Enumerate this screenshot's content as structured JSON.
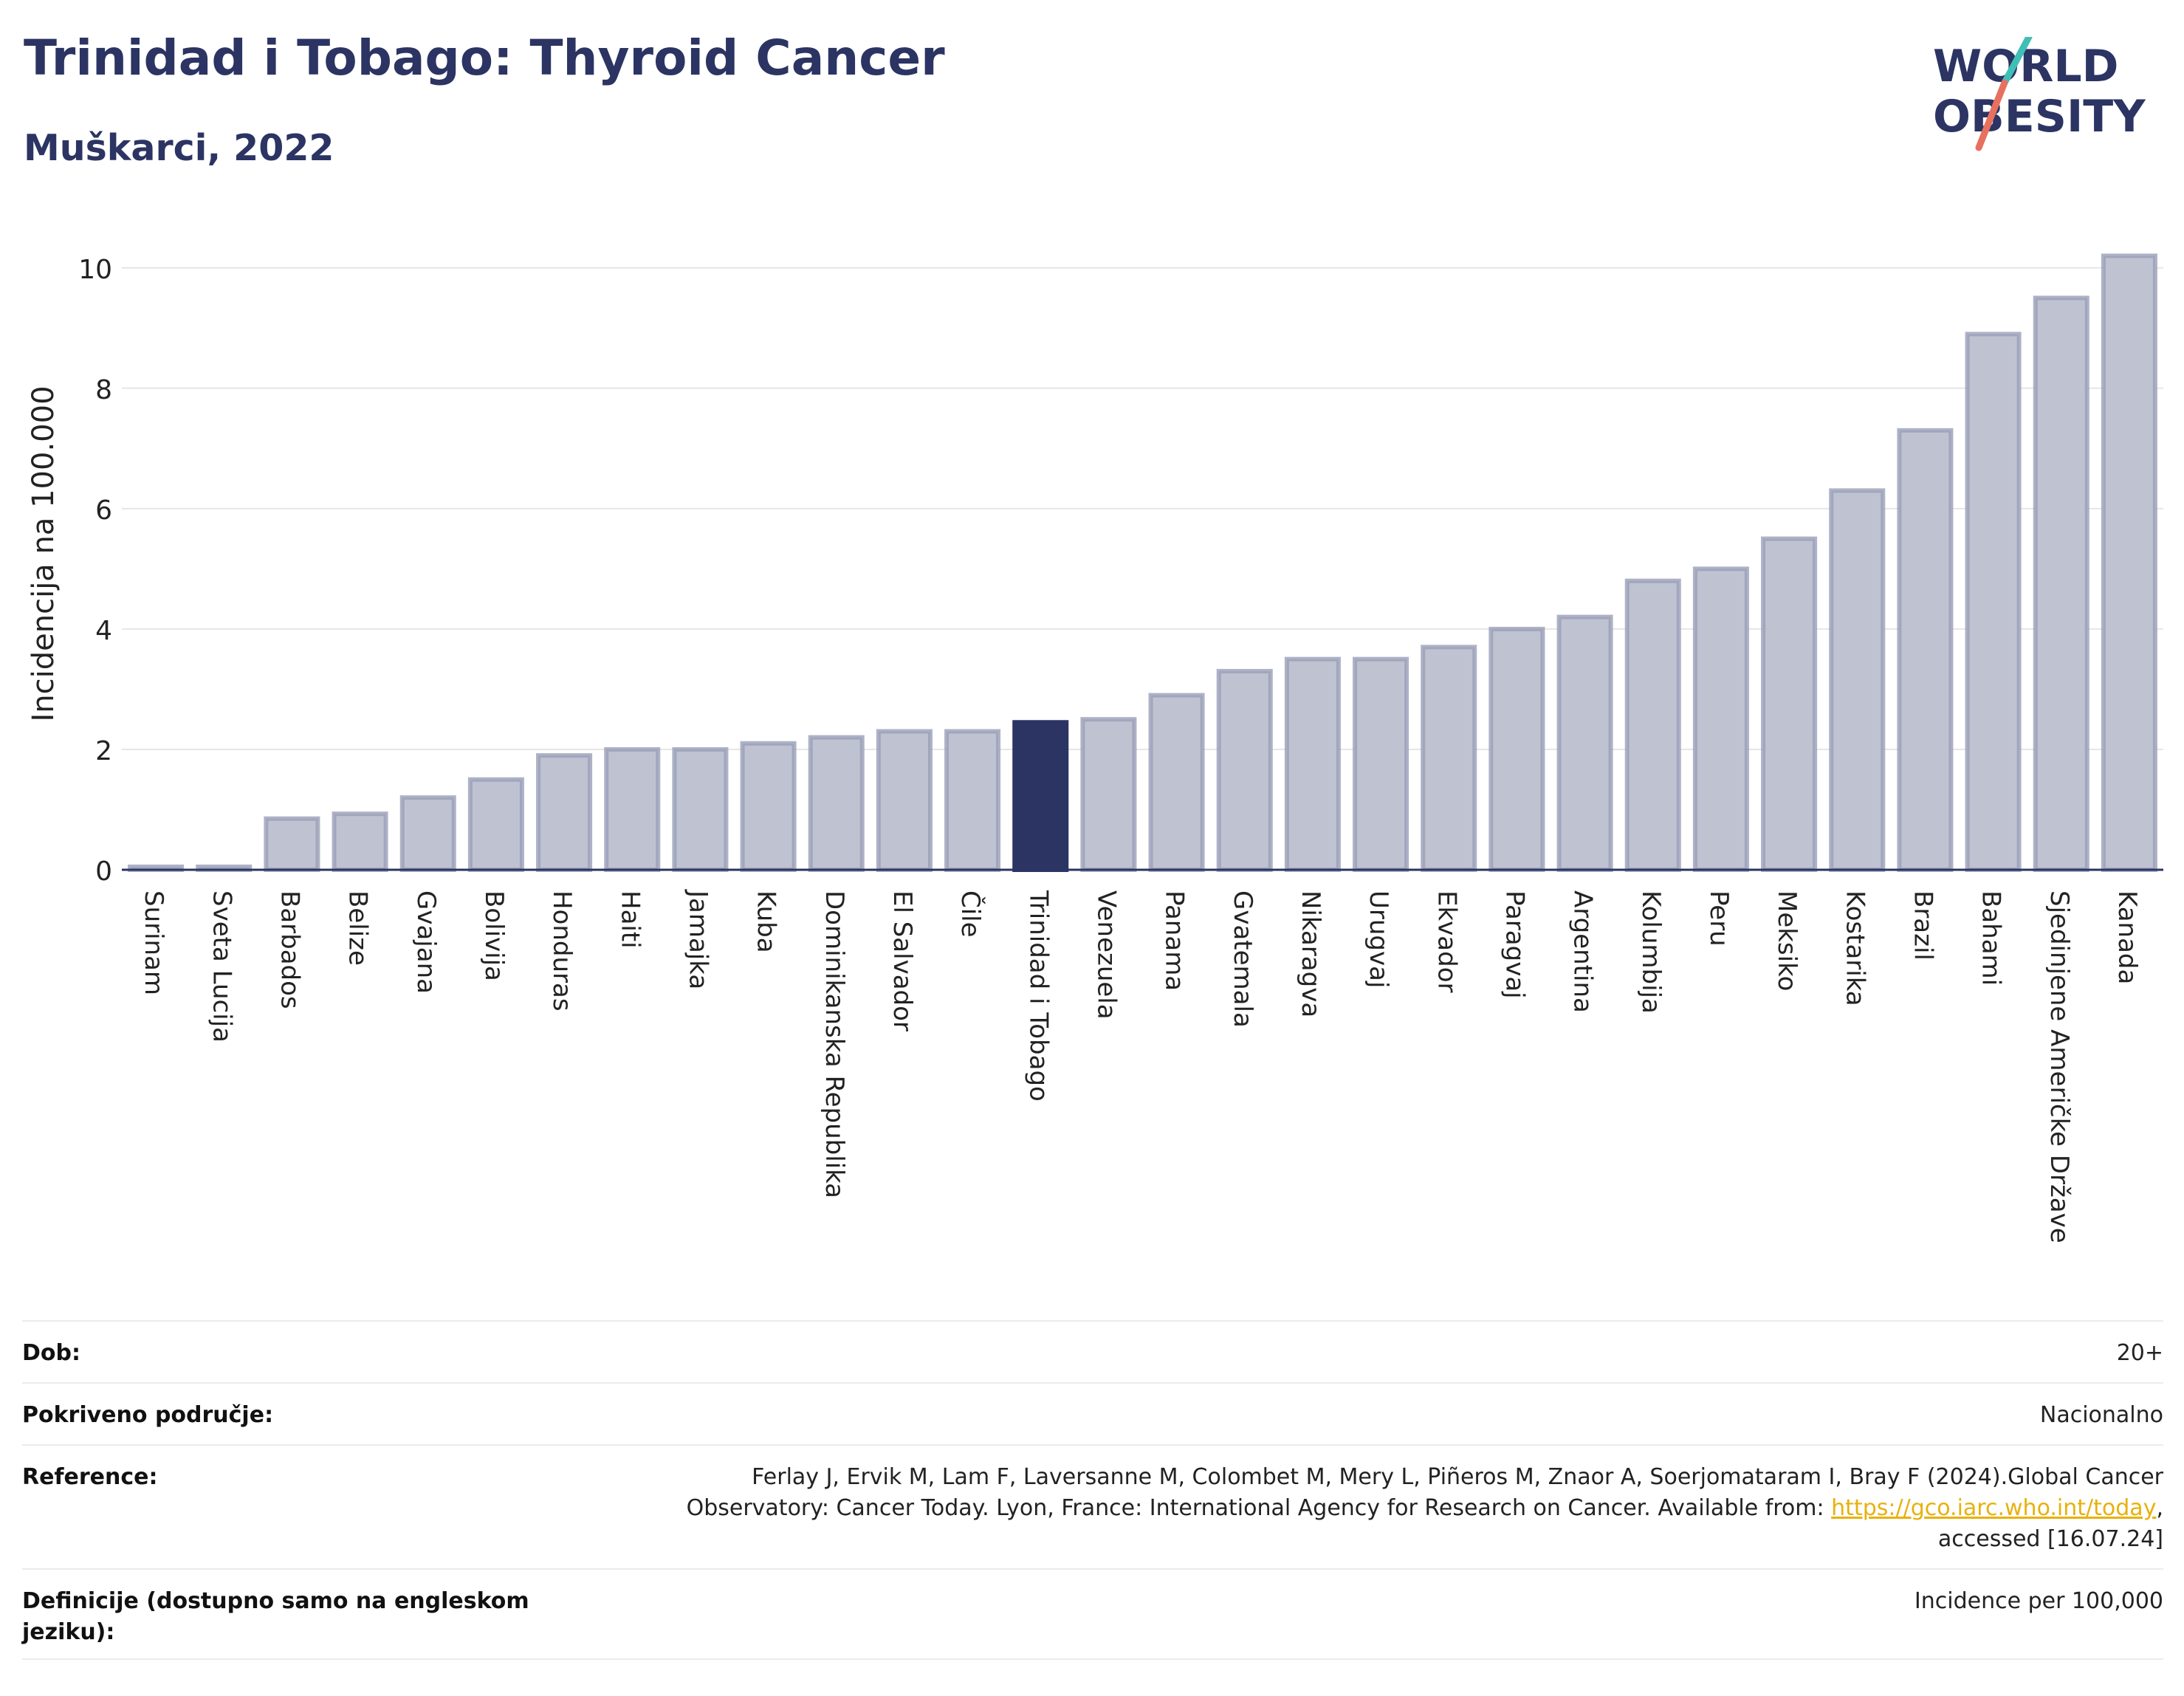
{
  "header": {
    "title": "Trinidad i Tobago: Thyroid Cancer",
    "subtitle": "Muškarci, 2022"
  },
  "logo": {
    "line1": "WORLD",
    "line2": "OBESITY"
  },
  "colors": {
    "bar": "#bfc2d1",
    "bar_stroke": "#9a9fb8",
    "highlight": "#2b3462",
    "grid": "#e6e6e6"
  },
  "chart_data": {
    "type": "bar",
    "ylabel": "Incidencija na 100.000",
    "ylim": [
      0,
      10.5
    ],
    "yticks": [
      0,
      2,
      4,
      6,
      8,
      10
    ],
    "highlight": "Trinidad i Tobago",
    "categories": [
      "Surinam",
      "Sveta Lucija",
      "Barbados",
      "Belize",
      "Gvajana",
      "Bolivija",
      "Honduras",
      "Haiti",
      "Jamajka",
      "Kuba",
      "Dominikanska Republika",
      "El Salvador",
      "Čile",
      "Trinidad i Tobago",
      "Venezuela",
      "Panama",
      "Gvatemala",
      "Nikaragva",
      "Urugvaj",
      "Ekvador",
      "Paragvaj",
      "Argentina",
      "Kolumbija",
      "Peru",
      "Meksiko",
      "Kostarika",
      "Brazil",
      "Bahami",
      "Sjedinjene Američke Države",
      "Kanada"
    ],
    "values": [
      0.05,
      0.05,
      0.85,
      0.93,
      1.2,
      1.5,
      1.9,
      2.0,
      2.0,
      2.1,
      2.2,
      2.3,
      2.3,
      2.45,
      2.5,
      2.9,
      3.3,
      3.5,
      3.5,
      3.7,
      4.0,
      4.2,
      4.8,
      5.0,
      5.5,
      6.3,
      7.3,
      8.9,
      9.5,
      10.2
    ]
  },
  "info": {
    "age_label": "Dob:",
    "age_value": "20+",
    "coverage_label": "Pokriveno područje:",
    "coverage_value": "Nacionalno",
    "reference_label": "Reference:",
    "reference_text_1": "Ferlay J, Ervik M, Lam F, Laversanne M, Colombet M, Mery L, Piñeros M, Znaor A, Soerjomataram I, Bray F (2024).Global Cancer",
    "reference_text_2": "Observatory: Cancer Today. Lyon, France: International Agency for Research on Cancer. Available from: ",
    "reference_link": "https://gco.iarc.who.int/today",
    "reference_text_3": ",",
    "reference_text_4": "accessed [16.07.24]",
    "definitions_label": "Definicije (dostupno samo na engleskom jeziku):",
    "definitions_value": "Incidence per 100,000"
  }
}
